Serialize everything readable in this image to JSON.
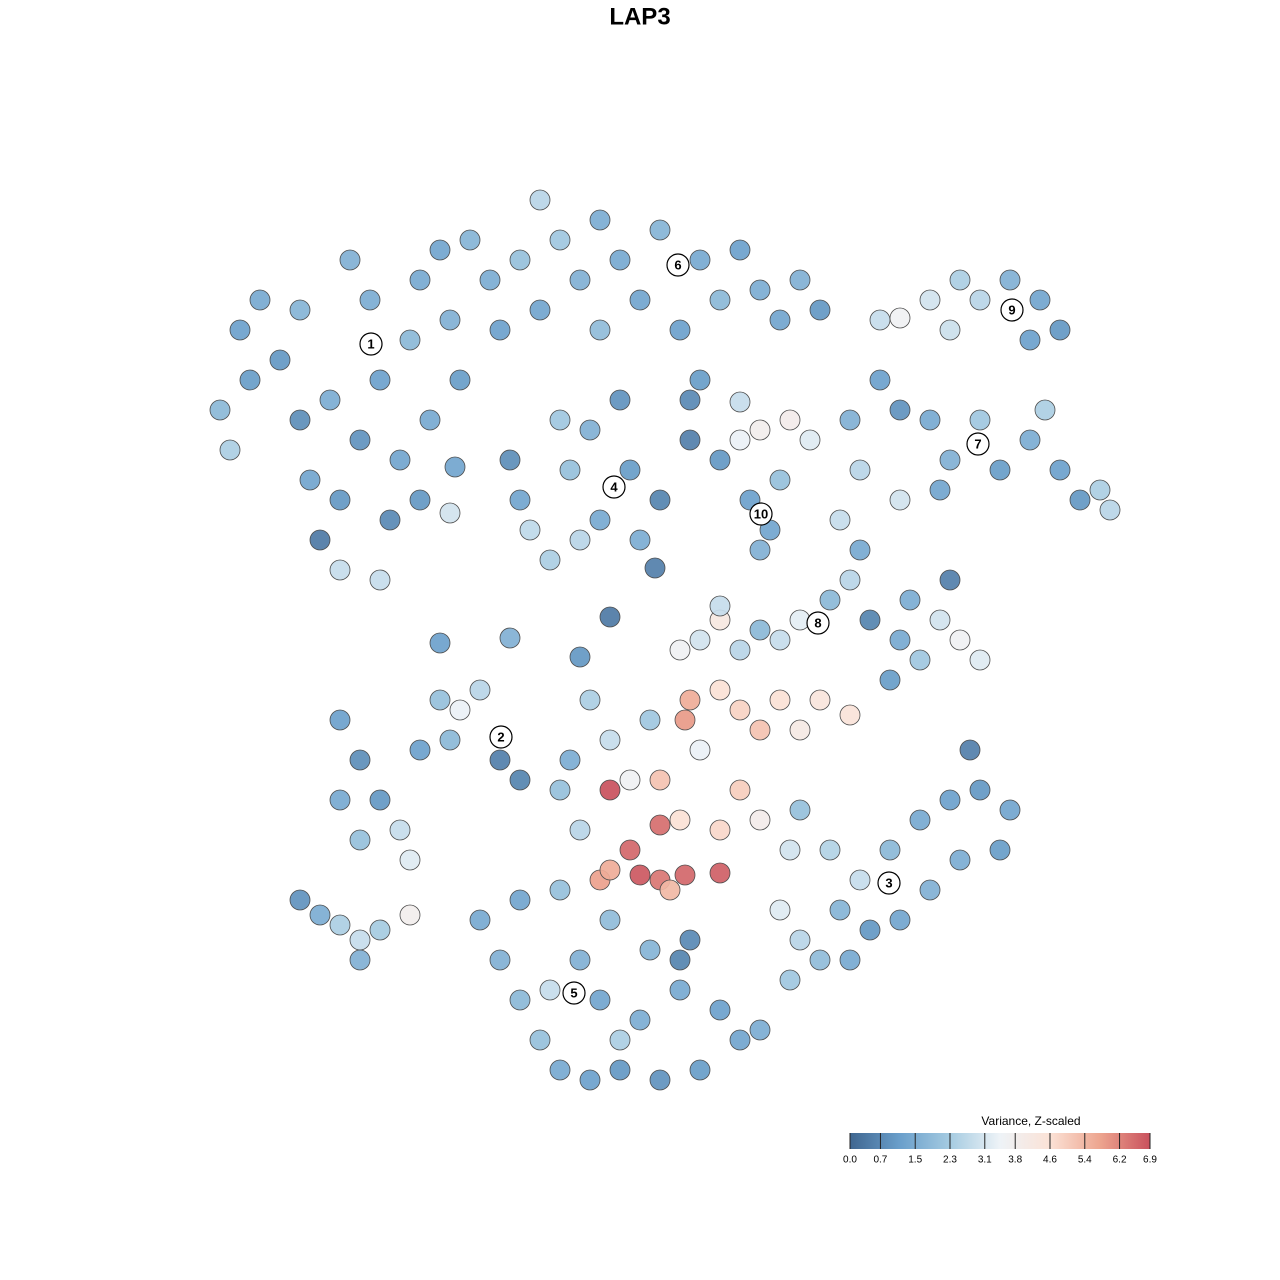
{
  "chart_data": {
    "type": "scatter",
    "title": "LAP3",
    "xlim": [
      0,
      1280
    ],
    "ylim": [
      1280,
      0
    ],
    "x": [
      220,
      240,
      260,
      280,
      300,
      310,
      320,
      340,
      350,
      370,
      380,
      360,
      340,
      390,
      400,
      410,
      420,
      440,
      450,
      460,
      470,
      490,
      500,
      430,
      300,
      230,
      380,
      250,
      330,
      420,
      540,
      560,
      580,
      600,
      620,
      640,
      660,
      700,
      720,
      740,
      760,
      780,
      800,
      820,
      680,
      600,
      540,
      520,
      880,
      900,
      930,
      950,
      980,
      1010,
      1040,
      1060,
      1030,
      960,
      850,
      880,
      900,
      930,
      950,
      980,
      1000,
      1030,
      1060,
      1080,
      1100,
      1110,
      860,
      900,
      940,
      510,
      520,
      530,
      550,
      570,
      590,
      600,
      630,
      640,
      660,
      620,
      580,
      560,
      690,
      720,
      740,
      760,
      790,
      810,
      750,
      770,
      760,
      780,
      700,
      690,
      840,
      860,
      850,
      830,
      870,
      900,
      920,
      940,
      960,
      980,
      890,
      910,
      950,
      800,
      780,
      760,
      340,
      360,
      380,
      340,
      400,
      420,
      440,
      460,
      480,
      500,
      520,
      410,
      360,
      450,
      300,
      320,
      340,
      360,
      380,
      360,
      410,
      590,
      610,
      630,
      610,
      580,
      630,
      600,
      640,
      660,
      685,
      720,
      660,
      660,
      680,
      690,
      685,
      720,
      740,
      760,
      780,
      800,
      820,
      850,
      740,
      720,
      760,
      790,
      700,
      650,
      680,
      700,
      720,
      740,
      670,
      610,
      560,
      570,
      800,
      830,
      860,
      890,
      920,
      950,
      980,
      1010,
      1000,
      960,
      930,
      900,
      870,
      840,
      800,
      780,
      820,
      790,
      850,
      480,
      500,
      520,
      540,
      560,
      590,
      620,
      660,
      700,
      740,
      760,
      720,
      680,
      650,
      610,
      580,
      550,
      600,
      640,
      680,
      690,
      520,
      560,
      620,
      455,
      450,
      655,
      610,
      440,
      510,
      580,
      720,
      740,
      970,
      1045
    ],
    "y": [
      410,
      330,
      300,
      360,
      420,
      480,
      540,
      570,
      260,
      300,
      380,
      440,
      500,
      520,
      460,
      340,
      280,
      250,
      320,
      380,
      240,
      280,
      330,
      420,
      310,
      450,
      580,
      380,
      400,
      500,
      200,
      240,
      280,
      220,
      260,
      300,
      230,
      260,
      300,
      250,
      290,
      320,
      280,
      310,
      330,
      330,
      310,
      260,
      320,
      318,
      300,
      330,
      300,
      280,
      300,
      330,
      340,
      280,
      420,
      380,
      410,
      420,
      460,
      420,
      470,
      440,
      470,
      500,
      490,
      510,
      470,
      500,
      490,
      460,
      500,
      530,
      560,
      470,
      430,
      520,
      470,
      540,
      500,
      400,
      540,
      420,
      440,
      460,
      440,
      430,
      420,
      440,
      500,
      530,
      550,
      480,
      380,
      400,
      520,
      550,
      580,
      600,
      620,
      640,
      660,
      620,
      640,
      660,
      680,
      600,
      580,
      620,
      640,
      630,
      720,
      760,
      800,
      800,
      830,
      750,
      700,
      710,
      690,
      760,
      780,
      860,
      840,
      740,
      900,
      915,
      925,
      940,
      930,
      960,
      915,
      700,
      740,
      780,
      790,
      830,
      850,
      880,
      875,
      880,
      875,
      873,
      825,
      780,
      820,
      700,
      720,
      690,
      710,
      730,
      700,
      730,
      700,
      715,
      790,
      830,
      820,
      850,
      750,
      720,
      650,
      640,
      620,
      650,
      890,
      870,
      790,
      760,
      810,
      850,
      880,
      850,
      820,
      800,
      790,
      810,
      850,
      860,
      890,
      920,
      930,
      910,
      940,
      910,
      960,
      980,
      960,
      920,
      960,
      1000,
      1040,
      1070,
      1080,
      1070,
      1080,
      1070,
      1040,
      1030,
      1010,
      990,
      950,
      920,
      960,
      990,
      1000,
      1020,
      960,
      940,
      900,
      890,
      1040,
      467,
      513,
      568,
      617,
      643,
      638,
      657,
      606,
      402,
      750,
      410
    ],
    "values": [
      1.8,
      1.2,
      1.4,
      1.0,
      0.8,
      1.3,
      0.4,
      2.8,
      1.6,
      1.5,
      1.2,
      0.9,
      1.0,
      0.7,
      1.3,
      1.8,
      1.4,
      1.3,
      1.6,
      1.1,
      1.7,
      1.5,
      1.2,
      1.4,
      1.7,
      2.4,
      2.8,
      1.1,
      1.5,
      1.0,
      2.6,
      2.2,
      1.6,
      1.5,
      1.4,
      1.3,
      1.7,
      1.4,
      1.8,
      1.2,
      1.5,
      1.3,
      1.6,
      1.0,
      1.2,
      1.9,
      1.3,
      2.0,
      2.8,
      3.6,
      3.0,
      2.9,
      2.6,
      1.6,
      1.3,
      1.0,
      1.2,
      2.4,
      1.6,
      1.2,
      0.9,
      1.4,
      1.6,
      2.2,
      1.1,
      1.5,
      1.2,
      1.0,
      2.4,
      2.6,
      2.6,
      3.0,
      1.3,
      0.8,
      1.3,
      2.7,
      2.4,
      2.0,
      1.6,
      1.4,
      1.1,
      1.5,
      0.6,
      0.9,
      2.6,
      2.2,
      0.5,
      1.0,
      3.4,
      3.8,
      3.9,
      3.2,
      1.2,
      1.3,
      1.6,
      2.0,
      1.1,
      0.7,
      2.8,
      1.4,
      2.6,
      1.8,
      0.6,
      1.4,
      2.2,
      3.0,
      3.6,
      3.2,
      1.1,
      1.5,
      0.5,
      3.3,
      2.8,
      1.8,
      1.2,
      0.8,
      1.0,
      1.4,
      2.8,
      1.2,
      2.0,
      3.4,
      2.6,
      0.5,
      0.6,
      3.2,
      2.0,
      1.8,
      0.9,
      1.5,
      2.4,
      2.8,
      2.3,
      1.6,
      3.8,
      2.4,
      2.8,
      3.6,
      6.9,
      2.6,
      6.6,
      5.8,
      6.8,
      6.4,
      6.6,
      6.7,
      6.5,
      5.2,
      4.6,
      5.6,
      5.9,
      4.6,
      4.9,
      5.2,
      4.6,
      4.1,
      4.4,
      4.5,
      5.0,
      4.8,
      3.9,
      3.0,
      3.4,
      2.2,
      3.6,
      3.0,
      4.2,
      2.6,
      5.4,
      5.6,
      2.0,
      1.5,
      2.0,
      2.5,
      2.8,
      1.8,
      1.4,
      1.2,
      1.0,
      1.3,
      1.1,
      1.5,
      1.6,
      1.3,
      1.0,
      1.7,
      2.6,
      3.2,
      1.9,
      2.2,
      1.4,
      1.4,
      1.6,
      1.8,
      2.0,
      1.4,
      1.2,
      1.0,
      0.9,
      1.1,
      1.3,
      1.5,
      1.2,
      1.4,
      1.7,
      1.9,
      1.6,
      2.8,
      1.3,
      1.5,
      0.6,
      0.7,
      1.3,
      2.0,
      2.4,
      1.3,
      3.0,
      0.5,
      0.4,
      1.2,
      1.6,
      1.0,
      2.8,
      2.8,
      0.5,
      2.4
    ],
    "annotations": [
      {
        "x": 371,
        "y": 344,
        "label": "1"
      },
      {
        "x": 501,
        "y": 737,
        "label": "2"
      },
      {
        "x": 889,
        "y": 883,
        "label": "3"
      },
      {
        "x": 614,
        "y": 487,
        "label": "4"
      },
      {
        "x": 574,
        "y": 993,
        "label": "5"
      },
      {
        "x": 678,
        "y": 265,
        "label": "6"
      },
      {
        "x": 978,
        "y": 444,
        "label": "7"
      },
      {
        "x": 818,
        "y": 623,
        "label": "8"
      },
      {
        "x": 1012,
        "y": 310,
        "label": "9"
      },
      {
        "x": 761,
        "y": 514,
        "label": "10"
      }
    ],
    "colorbar": {
      "title": "Variance, Z-scaled",
      "clim": [
        0,
        6.9
      ],
      "colors": [
        "#3f6690",
        "#6a9fcb",
        "#a5cbe1",
        "#eef3f7",
        "#fbe2d6",
        "#eda58f",
        "#c9515d"
      ],
      "ticks": [
        {
          "value": 0,
          "label": "0.0"
        },
        0.7,
        1.5,
        2.3,
        3.1,
        3.8,
        4.6,
        5.4,
        6.2,
        6.9
      ]
    }
  }
}
